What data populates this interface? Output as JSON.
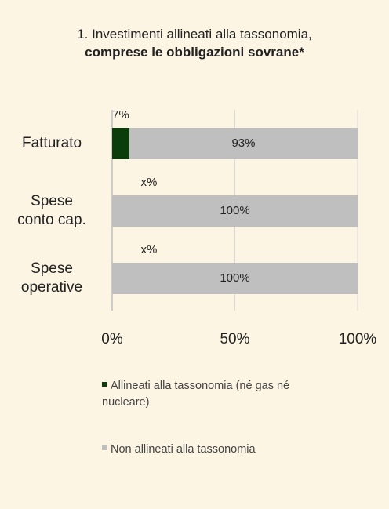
{
  "chart_data": {
    "type": "stacked_bar_horizontal",
    "title": "1. Investimenti allineati alla tassonomia,",
    "subtitle": "comprese le obbligazioni sovrane*",
    "categories": [
      "Fatturato",
      "Spese\nconto cap.",
      "Spese\noperative"
    ],
    "series": [
      {
        "name": "Allineati alla tassonomia (né gas né nucleare)",
        "color": "#0b3d0b",
        "values": [
          7,
          null,
          null
        ],
        "value_labels": [
          "7%",
          "x%",
          "x%"
        ]
      },
      {
        "name": "Non allineati alla tassonomia",
        "color": "#bfbfbf",
        "values": [
          93,
          100,
          100
        ],
        "value_labels": [
          "93%",
          "100%",
          "100%"
        ]
      }
    ],
    "xlim": [
      0,
      100
    ],
    "xticks": [
      {
        "value": 0,
        "label": "0%"
      },
      {
        "value": 50,
        "label": "50%"
      },
      {
        "value": 100,
        "label": "100%"
      }
    ],
    "grid": true
  }
}
